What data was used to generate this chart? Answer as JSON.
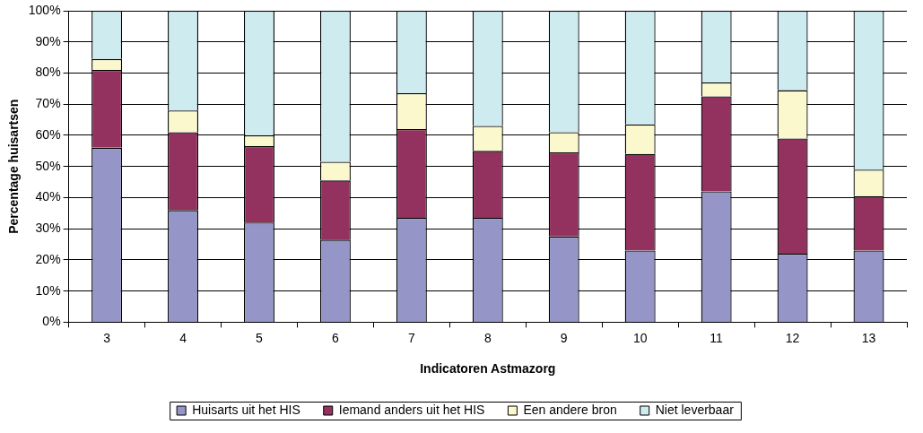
{
  "chart_data": {
    "type": "bar",
    "stacked": true,
    "xlabel": "Indicatoren Astmazorg",
    "ylabel": "Percentage huisartsen",
    "categories": [
      "3",
      "4",
      "5",
      "6",
      "7",
      "8",
      "9",
      "10",
      "11",
      "12",
      "13"
    ],
    "series": [
      {
        "name": "Huisarts uit het HIS",
        "color": "#9595c7",
        "values": [
          56,
          36,
          32,
          26.5,
          33.5,
          33.5,
          27.5,
          23,
          42,
          22,
          23
        ]
      },
      {
        "name": "Iemand anders uit het HIS",
        "color": "#93325e",
        "values": [
          25,
          25,
          24.5,
          19,
          28.5,
          21.5,
          27,
          31,
          30.5,
          37,
          17.5
        ]
      },
      {
        "name": "Een andere bron",
        "color": "#fbf8cd",
        "values": [
          3.5,
          7,
          3.5,
          6,
          11.5,
          8,
          6.5,
          9.5,
          4.5,
          15.5,
          8.5
        ]
      },
      {
        "name": "Niet leverbaar",
        "color": "#ceebf0",
        "values": [
          15.5,
          32,
          40,
          48.5,
          26.5,
          37,
          39,
          36.5,
          23,
          25.5,
          51
        ]
      }
    ],
    "ylim": [
      0,
      100
    ],
    "yticks": [
      {
        "value": 0,
        "label": "0%"
      },
      {
        "value": 10,
        "label": "10%"
      },
      {
        "value": 20,
        "label": "20%"
      },
      {
        "value": 30,
        "label": "30%"
      },
      {
        "value": 40,
        "label": "40%"
      },
      {
        "value": 50,
        "label": "50%"
      },
      {
        "value": 60,
        "label": "60%"
      },
      {
        "value": 70,
        "label": "70%"
      },
      {
        "value": 80,
        "label": "80%"
      },
      {
        "value": 90,
        "label": "90%"
      },
      {
        "value": 100,
        "label": "100%"
      }
    ],
    "grid": "y",
    "legend": "bottom"
  }
}
